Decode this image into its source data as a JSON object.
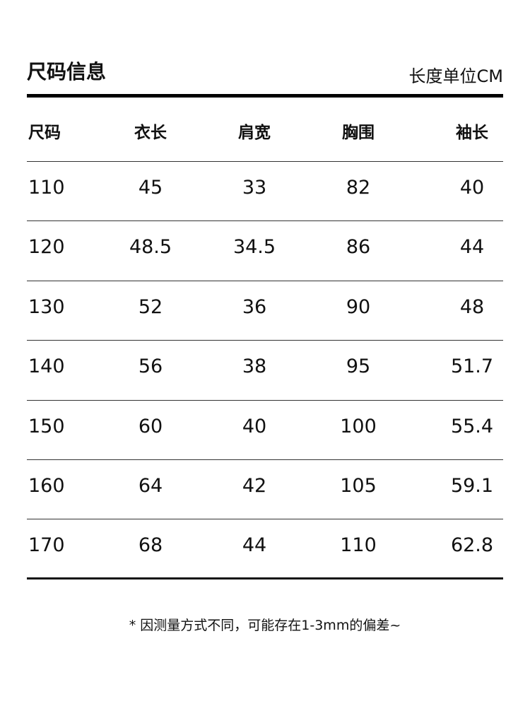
{
  "title": "尺码信息",
  "unit_label": "长度单位CM",
  "table": {
    "headers": [
      "尺码",
      "衣长",
      "肩宽",
      "胸围",
      "袖长"
    ],
    "rows": [
      [
        "110",
        "45",
        "33",
        "82",
        "40"
      ],
      [
        "120",
        "48.5",
        "34.5",
        "86",
        "44"
      ],
      [
        "130",
        "52",
        "36",
        "90",
        "48"
      ],
      [
        "140",
        "56",
        "38",
        "95",
        "51.7"
      ],
      [
        "150",
        "60",
        "40",
        "100",
        "55.4"
      ],
      [
        "160",
        "64",
        "42",
        "105",
        "59.1"
      ],
      [
        "170",
        "68",
        "44",
        "110",
        "62.8"
      ]
    ]
  },
  "footnote": "* 因测量方式不同，可能存在1-3mm的偏差~"
}
